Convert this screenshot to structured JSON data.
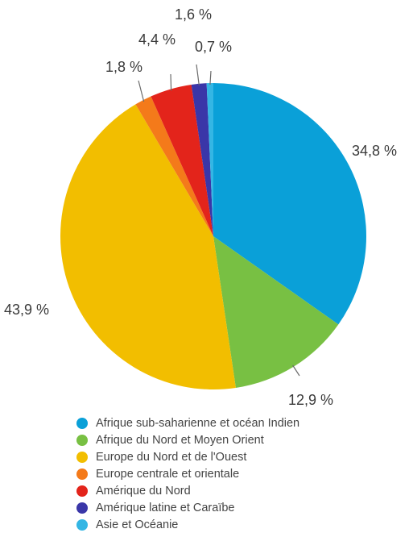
{
  "chart_data": {
    "type": "pie",
    "slices": [
      {
        "name": "Afrique sub-saharienne et océan Indien",
        "value": 34.8,
        "label": "34,8 %",
        "color": "#0aa0d8"
      },
      {
        "name": "Afrique du Nord et Moyen Orient",
        "value": 12.9,
        "label": "12,9 %",
        "color": "#78c043"
      },
      {
        "name": "Europe du Nord et de l'Ouest",
        "value": 43.9,
        "label": "43,9 %",
        "color": "#f2be00"
      },
      {
        "name": "Europe centrale et orientale",
        "value": 1.8,
        "label": "1,8 %",
        "color": "#f47a1a"
      },
      {
        "name": "Amérique du Nord",
        "value": 4.4,
        "label": "4,4 %",
        "color": "#e3241b"
      },
      {
        "name": "Amérique latine et Caraïbe",
        "value": 1.6,
        "label": "1,6 %",
        "color": "#3a36a8"
      },
      {
        "name": "Asie et Océanie",
        "value": 0.7,
        "label": "0,7 %",
        "color": "#34b6e4"
      }
    ],
    "legend_position": "bottom-left"
  }
}
